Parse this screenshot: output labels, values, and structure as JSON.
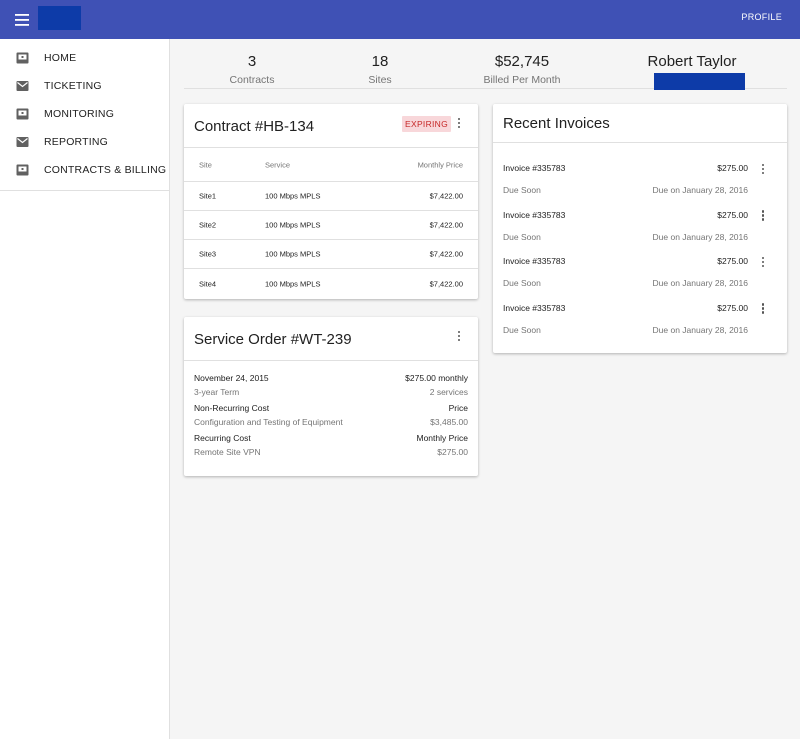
{
  "appbar": {
    "menu_icon": "menu-icon",
    "profile_label": "PROFILE",
    "bar_color": "#3f51b5",
    "logo_color": "#0d3ba8"
  },
  "sidebar": {
    "items": [
      {
        "label": "HOME",
        "icon": "dashboard-box-icon"
      },
      {
        "label": "TICKETING",
        "icon": "mail-icon"
      },
      {
        "label": "MONITORING",
        "icon": "dashboard-box-icon"
      },
      {
        "label": "REPORTING",
        "icon": "mail-icon"
      },
      {
        "label": "CONTRACTS & BILLING",
        "icon": "dashboard-box-icon"
      }
    ]
  },
  "stats": {
    "contracts": {
      "value": "3",
      "label": "Contracts"
    },
    "sites": {
      "value": "18",
      "label": "Sites"
    },
    "billed": {
      "value": "$52,745",
      "label": "Billed Per Month"
    },
    "user_name": "Robert Taylor"
  },
  "contract": {
    "title": "Contract #HB-134",
    "badge": "EXPIRING",
    "badge_colors": {
      "bg": "#f8d7da",
      "fg": "#c62828"
    },
    "columns": {
      "site": "Site",
      "service": "Service",
      "price": "Monthly Price"
    },
    "rows": [
      {
        "site": "Site1",
        "service": "100 Mbps MPLS",
        "price": "$7,422.00"
      },
      {
        "site": "Site2",
        "service": "100 Mbps MPLS",
        "price": "$7,422.00"
      },
      {
        "site": "Site3",
        "service": "100 Mbps MPLS",
        "price": "$7,422.00"
      },
      {
        "site": "Site4",
        "service": "100 Mbps MPLS",
        "price": "$7,422.00"
      }
    ]
  },
  "service_order": {
    "title": "Service Order #WT-239",
    "date": "November 24, 2015",
    "monthly": "$275.00 monthly",
    "term": "3-year Term",
    "services": "2 services",
    "nonrecurring_label": "Non-Recurring Cost",
    "price_label": "Price",
    "nonrecurring_item": "Configuration and Testing of Equipment",
    "nonrecurring_price": "$3,485.00",
    "recurring_label": "Recurring Cost",
    "monthly_price_label": "Monthly Price",
    "recurring_item": "Remote Site VPN",
    "recurring_price": "$275.00"
  },
  "invoices": {
    "title": "Recent Invoices",
    "items": [
      {
        "name": "Invoice #335783",
        "amount": "$275.00",
        "status": "Due Soon",
        "due": "Due on January 28, 2016"
      },
      {
        "name": "Invoice #335783",
        "amount": "$275.00",
        "status": "Due Soon",
        "due": "Due on January 28, 2016"
      },
      {
        "name": "Invoice #335783",
        "amount": "$275.00",
        "status": "Due Soon",
        "due": "Due on January 28, 2016"
      },
      {
        "name": "Invoice #335783",
        "amount": "$275.00",
        "status": "Due Soon",
        "due": "Due on January 28, 2016"
      }
    ]
  }
}
